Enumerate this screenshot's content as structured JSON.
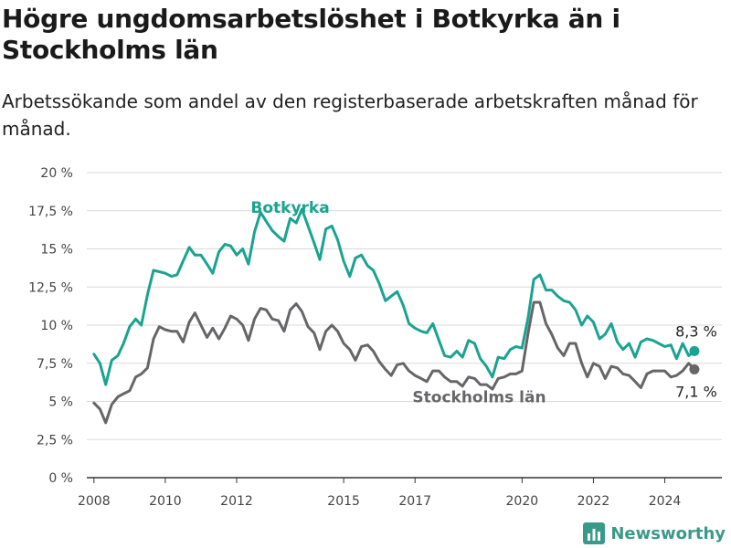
{
  "title": "Högre ungdomsarbetslöshet i Botkyrka än i Stockholms län",
  "subtitle": "Arbetssökande som andel av den registerbaserade arbetskraften månad för månad.",
  "brand": {
    "name": "Newsworthy",
    "color": "#3a9a8a"
  },
  "chart_data": {
    "type": "line",
    "title": "Högre ungdomsarbetslöshet i Botkyrka än i Stockholms län",
    "subtitle": "Arbetssökande som andel av den registerbaserade arbetskraften månad för månad.",
    "xlabel": "",
    "ylabel": "",
    "xlim": [
      2007.8,
      2025.6
    ],
    "ylim": [
      0,
      20
    ],
    "x_ticks": [
      {
        "value": 2008,
        "label": "2008"
      },
      {
        "value": 2010,
        "label": "2010"
      },
      {
        "value": 2012,
        "label": "2012"
      },
      {
        "value": 2015,
        "label": "2015"
      },
      {
        "value": 2017,
        "label": "2017"
      },
      {
        "value": 2020,
        "label": "2020"
      },
      {
        "value": 2022,
        "label": "2022"
      },
      {
        "value": 2024,
        "label": "2024"
      }
    ],
    "y_ticks": [
      {
        "value": 0,
        "label": "0 %"
      },
      {
        "value": 2.5,
        "label": "2,5 %"
      },
      {
        "value": 5,
        "label": "5 %"
      },
      {
        "value": 7.5,
        "label": "7,5 %"
      },
      {
        "value": 10,
        "label": "10 %"
      },
      {
        "value": 12.5,
        "label": "12,5 %"
      },
      {
        "value": 15,
        "label": "15 %"
      },
      {
        "value": 17.5,
        "label": "17,5 %"
      },
      {
        "value": 20,
        "label": "20 %"
      }
    ],
    "grid": true,
    "legend": "direct labels",
    "series": [
      {
        "name": "Botkyrka",
        "color": "#1aa391",
        "end_label": "8,3 %",
        "points": [
          [
            2008.0,
            8.1
          ],
          [
            2008.17,
            7.5
          ],
          [
            2008.33,
            6.1
          ],
          [
            2008.5,
            7.7
          ],
          [
            2008.67,
            8.0
          ],
          [
            2008.83,
            8.8
          ],
          [
            2009.0,
            9.9
          ],
          [
            2009.17,
            10.4
          ],
          [
            2009.33,
            10.0
          ],
          [
            2009.5,
            12.0
          ],
          [
            2009.67,
            13.6
          ],
          [
            2009.83,
            13.5
          ],
          [
            2010.0,
            13.4
          ],
          [
            2010.17,
            13.2
          ],
          [
            2010.33,
            13.3
          ],
          [
            2010.5,
            14.2
          ],
          [
            2010.67,
            15.1
          ],
          [
            2010.83,
            14.6
          ],
          [
            2011.0,
            14.6
          ],
          [
            2011.17,
            14.0
          ],
          [
            2011.33,
            13.4
          ],
          [
            2011.5,
            14.8
          ],
          [
            2011.67,
            15.3
          ],
          [
            2011.83,
            15.2
          ],
          [
            2012.0,
            14.6
          ],
          [
            2012.17,
            15.0
          ],
          [
            2012.33,
            14.0
          ],
          [
            2012.5,
            16.1
          ],
          [
            2012.67,
            17.4
          ],
          [
            2012.83,
            16.8
          ],
          [
            2013.0,
            16.2
          ],
          [
            2013.17,
            15.8
          ],
          [
            2013.33,
            15.5
          ],
          [
            2013.5,
            17.0
          ],
          [
            2013.67,
            16.7
          ],
          [
            2013.83,
            17.6
          ],
          [
            2014.0,
            16.5
          ],
          [
            2014.17,
            15.4
          ],
          [
            2014.33,
            14.3
          ],
          [
            2014.5,
            16.3
          ],
          [
            2014.67,
            16.5
          ],
          [
            2014.83,
            15.6
          ],
          [
            2015.0,
            14.2
          ],
          [
            2015.17,
            13.2
          ],
          [
            2015.33,
            14.4
          ],
          [
            2015.5,
            14.6
          ],
          [
            2015.67,
            13.9
          ],
          [
            2015.83,
            13.6
          ],
          [
            2016.0,
            12.7
          ],
          [
            2016.17,
            11.6
          ],
          [
            2016.33,
            11.9
          ],
          [
            2016.5,
            12.2
          ],
          [
            2016.67,
            11.3
          ],
          [
            2016.83,
            10.1
          ],
          [
            2017.0,
            9.8
          ],
          [
            2017.17,
            9.6
          ],
          [
            2017.33,
            9.5
          ],
          [
            2017.5,
            10.1
          ],
          [
            2017.67,
            9.0
          ],
          [
            2017.83,
            8.0
          ],
          [
            2018.0,
            7.9
          ],
          [
            2018.17,
            8.3
          ],
          [
            2018.33,
            7.9
          ],
          [
            2018.5,
            9.0
          ],
          [
            2018.67,
            8.8
          ],
          [
            2018.83,
            7.8
          ],
          [
            2019.0,
            7.3
          ],
          [
            2019.17,
            6.6
          ],
          [
            2019.33,
            7.9
          ],
          [
            2019.5,
            7.8
          ],
          [
            2019.67,
            8.4
          ],
          [
            2019.83,
            8.6
          ],
          [
            2020.0,
            8.5
          ],
          [
            2020.17,
            10.5
          ],
          [
            2020.33,
            13.0
          ],
          [
            2020.5,
            13.3
          ],
          [
            2020.67,
            12.3
          ],
          [
            2020.83,
            12.3
          ],
          [
            2021.0,
            11.9
          ],
          [
            2021.17,
            11.6
          ],
          [
            2021.33,
            11.5
          ],
          [
            2021.5,
            11.0
          ],
          [
            2021.67,
            10.0
          ],
          [
            2021.83,
            10.6
          ],
          [
            2022.0,
            10.2
          ],
          [
            2022.17,
            9.1
          ],
          [
            2022.33,
            9.4
          ],
          [
            2022.5,
            10.1
          ],
          [
            2022.67,
            8.9
          ],
          [
            2022.83,
            8.4
          ],
          [
            2023.0,
            8.8
          ],
          [
            2023.17,
            7.9
          ],
          [
            2023.33,
            8.9
          ],
          [
            2023.5,
            9.1
          ],
          [
            2023.67,
            9.0
          ],
          [
            2023.83,
            8.8
          ],
          [
            2024.0,
            8.6
          ],
          [
            2024.17,
            8.7
          ],
          [
            2024.33,
            7.8
          ],
          [
            2024.5,
            8.8
          ],
          [
            2024.67,
            8.0
          ],
          [
            2024.83,
            8.3
          ]
        ]
      },
      {
        "name": "Stockholms län",
        "color": "#666668",
        "end_label": "7,1 %",
        "points": [
          [
            2008.0,
            4.9
          ],
          [
            2008.17,
            4.5
          ],
          [
            2008.33,
            3.6
          ],
          [
            2008.5,
            4.8
          ],
          [
            2008.67,
            5.3
          ],
          [
            2008.83,
            5.5
          ],
          [
            2009.0,
            5.7
          ],
          [
            2009.17,
            6.6
          ],
          [
            2009.33,
            6.8
          ],
          [
            2009.5,
            7.2
          ],
          [
            2009.67,
            9.1
          ],
          [
            2009.83,
            9.9
          ],
          [
            2010.0,
            9.7
          ],
          [
            2010.17,
            9.6
          ],
          [
            2010.33,
            9.6
          ],
          [
            2010.5,
            8.9
          ],
          [
            2010.67,
            10.2
          ],
          [
            2010.83,
            10.8
          ],
          [
            2011.0,
            10.0
          ],
          [
            2011.17,
            9.2
          ],
          [
            2011.33,
            9.8
          ],
          [
            2011.5,
            9.1
          ],
          [
            2011.67,
            9.8
          ],
          [
            2011.83,
            10.6
          ],
          [
            2012.0,
            10.4
          ],
          [
            2012.17,
            10.0
          ],
          [
            2012.33,
            9.0
          ],
          [
            2012.5,
            10.4
          ],
          [
            2012.67,
            11.1
          ],
          [
            2012.83,
            11.0
          ],
          [
            2013.0,
            10.4
          ],
          [
            2013.17,
            10.3
          ],
          [
            2013.33,
            9.6
          ],
          [
            2013.5,
            11.0
          ],
          [
            2013.67,
            11.4
          ],
          [
            2013.83,
            10.9
          ],
          [
            2014.0,
            9.9
          ],
          [
            2014.17,
            9.5
          ],
          [
            2014.33,
            8.4
          ],
          [
            2014.5,
            9.6
          ],
          [
            2014.67,
            10.0
          ],
          [
            2014.83,
            9.6
          ],
          [
            2015.0,
            8.8
          ],
          [
            2015.17,
            8.4
          ],
          [
            2015.33,
            7.7
          ],
          [
            2015.5,
            8.6
          ],
          [
            2015.67,
            8.7
          ],
          [
            2015.83,
            8.3
          ],
          [
            2016.0,
            7.6
          ],
          [
            2016.17,
            7.1
          ],
          [
            2016.33,
            6.7
          ],
          [
            2016.5,
            7.4
          ],
          [
            2016.67,
            7.5
          ],
          [
            2016.83,
            7.0
          ],
          [
            2017.0,
            6.7
          ],
          [
            2017.17,
            6.5
          ],
          [
            2017.33,
            6.3
          ],
          [
            2017.5,
            7.0
          ],
          [
            2017.67,
            7.0
          ],
          [
            2017.83,
            6.6
          ],
          [
            2018.0,
            6.3
          ],
          [
            2018.17,
            6.3
          ],
          [
            2018.33,
            6.0
          ],
          [
            2018.5,
            6.6
          ],
          [
            2018.67,
            6.5
          ],
          [
            2018.83,
            6.1
          ],
          [
            2019.0,
            6.1
          ],
          [
            2019.17,
            5.8
          ],
          [
            2019.33,
            6.5
          ],
          [
            2019.5,
            6.6
          ],
          [
            2019.67,
            6.8
          ],
          [
            2019.83,
            6.8
          ],
          [
            2020.0,
            7.0
          ],
          [
            2020.17,
            9.5
          ],
          [
            2020.33,
            11.5
          ],
          [
            2020.5,
            11.5
          ],
          [
            2020.67,
            10.1
          ],
          [
            2020.83,
            9.4
          ],
          [
            2021.0,
            8.5
          ],
          [
            2021.17,
            8.0
          ],
          [
            2021.33,
            8.8
          ],
          [
            2021.5,
            8.8
          ],
          [
            2021.67,
            7.5
          ],
          [
            2021.83,
            6.6
          ],
          [
            2022.0,
            7.5
          ],
          [
            2022.17,
            7.3
          ],
          [
            2022.33,
            6.5
          ],
          [
            2022.5,
            7.3
          ],
          [
            2022.67,
            7.2
          ],
          [
            2022.83,
            6.8
          ],
          [
            2023.0,
            6.7
          ],
          [
            2023.17,
            6.3
          ],
          [
            2023.33,
            5.9
          ],
          [
            2023.5,
            6.8
          ],
          [
            2023.67,
            7.0
          ],
          [
            2023.83,
            7.0
          ],
          [
            2024.0,
            7.0
          ],
          [
            2024.17,
            6.6
          ],
          [
            2024.33,
            6.7
          ],
          [
            2024.5,
            7.0
          ],
          [
            2024.67,
            7.5
          ],
          [
            2024.83,
            7.1
          ]
        ]
      }
    ]
  }
}
